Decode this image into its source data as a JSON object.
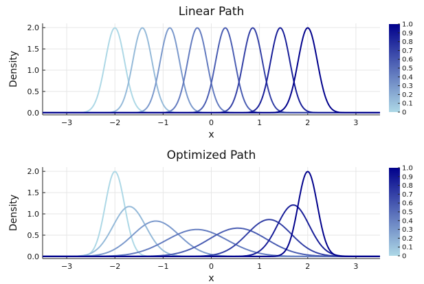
{
  "chart_data": [
    {
      "type": "line",
      "title": "Linear Path",
      "xlabel": "x",
      "ylabel": "Density",
      "xlim": [
        -3.5,
        3.5
      ],
      "ylim": [
        -0.05,
        2.1
      ],
      "xticks": [
        -3,
        -2,
        -1,
        0,
        1,
        2,
        3
      ],
      "yticks": [
        0.0,
        0.5,
        1.0,
        1.5,
        2.0
      ],
      "ytick_labels": [
        "0.0",
        "0.5",
        "1.0",
        "1.5",
        "2.0"
      ],
      "grid": true,
      "colorbar": {
        "range": [
          0,
          1
        ],
        "ticks": [
          "0",
          "0.1",
          "0.2",
          "0.3",
          "0.4",
          "0.5",
          "0.6",
          "0.7",
          "0.8",
          "0.9",
          "1.0"
        ],
        "color_low": "#add8e6",
        "color_high": "#00008b"
      },
      "curves": [
        {
          "t": 0.0,
          "mean": -2.0,
          "sd": 0.2
        },
        {
          "t": 0.14,
          "mean": -1.43,
          "sd": 0.2
        },
        {
          "t": 0.29,
          "mean": -0.86,
          "sd": 0.2
        },
        {
          "t": 0.43,
          "mean": -0.29,
          "sd": 0.2
        },
        {
          "t": 0.57,
          "mean": 0.29,
          "sd": 0.2
        },
        {
          "t": 0.71,
          "mean": 0.86,
          "sd": 0.2
        },
        {
          "t": 0.86,
          "mean": 1.43,
          "sd": 0.2
        },
        {
          "t": 1.0,
          "mean": 2.0,
          "sd": 0.2
        }
      ]
    },
    {
      "type": "line",
      "title": "Optimized Path",
      "xlabel": "x",
      "ylabel": "Density",
      "xlim": [
        -3.5,
        3.5
      ],
      "ylim": [
        -0.05,
        2.1
      ],
      "xticks": [
        -3,
        -2,
        -1,
        0,
        1,
        2,
        3
      ],
      "yticks": [
        0.0,
        0.5,
        1.0,
        1.5,
        2.0
      ],
      "ytick_labels": [
        "0.0",
        "0.5",
        "1.0",
        "1.5",
        "2.0"
      ],
      "grid": true,
      "colorbar": {
        "range": [
          0,
          1
        ],
        "ticks": [
          "0",
          "0.1",
          "0.2",
          "0.3",
          "0.4",
          "0.5",
          "0.6",
          "0.7",
          "0.8",
          "0.9",
          "1.0"
        ],
        "color_low": "#add8e6",
        "color_high": "#00008b"
      },
      "curves": [
        {
          "t": 0.0,
          "mean": -2.0,
          "sd": 0.2
        },
        {
          "t": 0.14,
          "mean": -1.7,
          "sd": 0.34
        },
        {
          "t": 0.29,
          "mean": -1.15,
          "sd": 0.48
        },
        {
          "t": 0.43,
          "mean": -0.3,
          "sd": 0.63
        },
        {
          "t": 0.57,
          "mean": 0.55,
          "sd": 0.6
        },
        {
          "t": 0.71,
          "mean": 1.2,
          "sd": 0.46
        },
        {
          "t": 0.86,
          "mean": 1.7,
          "sd": 0.33
        },
        {
          "t": 1.0,
          "mean": 2.0,
          "sd": 0.2
        }
      ]
    }
  ]
}
